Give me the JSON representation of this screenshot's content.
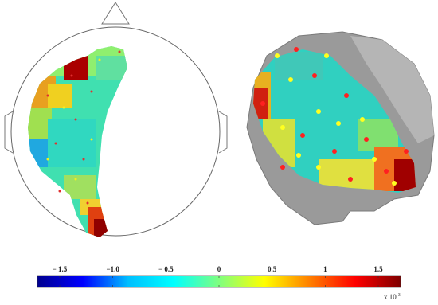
{
  "colorbar": {
    "clim": [
      -1.71,
      1.71
    ],
    "colors": [
      "#00008f",
      "#0000ff",
      "#00bfff",
      "#00ffff",
      "#7fff7f",
      "#ffff00",
      "#ff7f00",
      "#ff0000",
      "#7f0000"
    ],
    "ticks": [
      {
        "value": -1.5,
        "label": "− 1.5"
      },
      {
        "value": -1.0,
        "label": "−1.0"
      },
      {
        "value": -0.5,
        "label": "− 0.5"
      },
      0,
      0.5,
      1,
      1.5
    ],
    "exponent_label": "x 10",
    "exponent": "-3"
  }
}
